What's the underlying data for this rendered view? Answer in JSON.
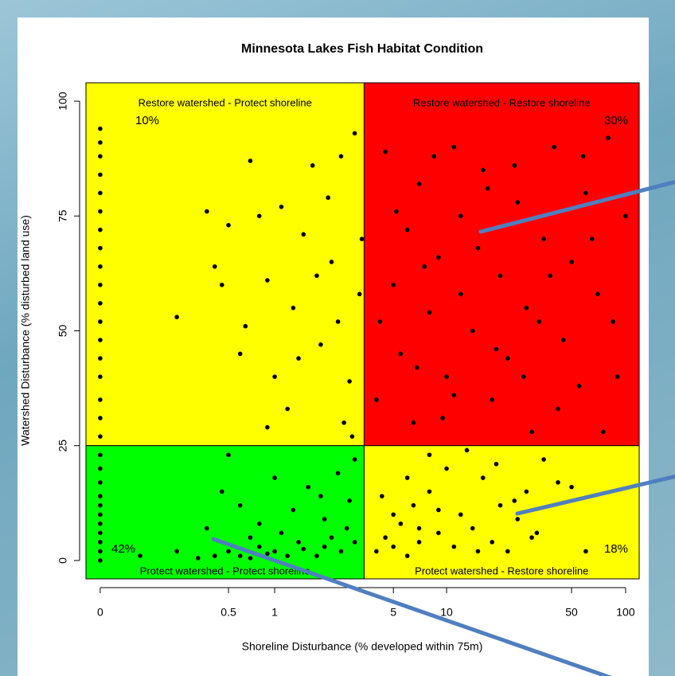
{
  "chart_data": {
    "type": "scatter",
    "title": "Minnesota Lakes Fish Habitat Condition",
    "x_label": "Shoreline Disturbance (% developed within 75m)",
    "y_label": "Watershed Disturbance (% disturbed land use)",
    "xscale": "log",
    "xlim": [
      -0.02,
      119
    ],
    "ylim": [
      -4,
      104
    ],
    "xticks": [
      0,
      0.5,
      1,
      5,
      10,
      50,
      100
    ],
    "yticks": [
      0,
      25,
      50,
      75,
      100
    ],
    "quadrant_split": [
      3.4,
      25
    ],
    "quadrants": {
      "names": [
        "Restore watershed - Protect shoreline",
        "Restore watershed - Restore shoreline",
        "Protect watershed - Protect shoreline",
        "Protect watershed - Restore shoreline"
      ],
      "values": [
        10,
        30,
        42,
        18
      ],
      "value_labels": [
        "10%",
        "30%",
        "42%",
        "18%"
      ],
      "colors": [
        "#ffff00",
        "#ff0000",
        "#00ff00",
        "#ffff00"
      ]
    },
    "point_color": "#000000",
    "x": [
      0,
      0,
      0,
      0,
      0,
      0,
      0,
      0,
      0,
      0,
      0,
      0,
      0,
      0,
      0,
      0,
      0,
      0,
      0,
      0,
      0,
      0,
      0,
      0,
      0,
      0,
      0,
      0,
      0,
      0.3,
      0.4,
      0.5,
      0.6,
      0.7,
      0.8,
      0.9,
      1,
      1.2,
      1.5,
      1.8,
      2,
      2.5,
      3,
      0.45,
      0.6,
      0.8,
      1.1,
      1.3,
      1.6,
      2,
      2.4,
      2.8,
      3,
      0.35,
      0.5,
      1.4,
      2.2,
      1.9,
      0.7,
      0.2,
      0.08,
      1,
      2.7,
      0.2,
      0.35,
      0.4,
      0.45,
      0.5,
      0.65,
      0.7,
      0.8,
      0.9,
      1,
      1.1,
      1.2,
      1.3,
      1.5,
      1.7,
      1.9,
      2.2,
      2.5,
      2.8,
      3,
      3.2,
      2.6,
      2.1,
      1.4,
      0.9,
      3.3,
      2.4,
      1.8,
      0.6,
      2.9,
      4,
      4.5,
      5,
      5.5,
      6,
      6.5,
      7,
      8,
      9,
      10,
      11,
      12,
      14,
      16,
      18,
      20,
      22,
      25,
      28,
      30,
      35,
      40,
      45,
      50,
      55,
      60,
      70,
      80,
      90,
      100,
      4.2,
      5.2,
      6.8,
      8.5,
      9.5,
      12,
      15,
      19,
      24,
      33,
      42,
      65,
      85,
      7.5,
      11,
      17,
      27,
      38,
      75,
      58,
      4,
      4.5,
      5,
      5.5,
      6,
      6.5,
      7,
      8,
      9,
      10,
      11,
      12,
      14,
      16,
      18,
      20,
      22,
      25,
      28,
      32,
      35,
      42,
      50,
      60,
      8,
      13,
      5,
      6,
      4.3,
      9,
      15,
      19,
      30,
      24,
      7
    ],
    "y": [
      0,
      2,
      4,
      6,
      8,
      10,
      12,
      14,
      17,
      20,
      23,
      27,
      31,
      35,
      40,
      44,
      48,
      52,
      56,
      60,
      64,
      68,
      72,
      76,
      80,
      84,
      88,
      91,
      94,
      0.5,
      1,
      2,
      1,
      0.5,
      3,
      1.5,
      2,
      1,
      2.5,
      1,
      3,
      2,
      4,
      15,
      12,
      8,
      6,
      11,
      16,
      9,
      19,
      13,
      22,
      7,
      23,
      4,
      5,
      14,
      5,
      2,
      1,
      18,
      7,
      53,
      76,
      64,
      60,
      73,
      51,
      87,
      75,
      61,
      40,
      77,
      33,
      55,
      71,
      86,
      47,
      65,
      88,
      39,
      93,
      58,
      30,
      79,
      44,
      29,
      70,
      52,
      62,
      45,
      27,
      35,
      89,
      60,
      45,
      72,
      30,
      82,
      54,
      66,
      40,
      90,
      75,
      50,
      85,
      35,
      62,
      44,
      78,
      55,
      28,
      70,
      90,
      48,
      65,
      38,
      80,
      58,
      92,
      40,
      75,
      52,
      76,
      42,
      88,
      31,
      58,
      68,
      46,
      86,
      52,
      33,
      70,
      52,
      64,
      36,
      81,
      40,
      62,
      28,
      88,
      2,
      5,
      3,
      8,
      1,
      12,
      4,
      15,
      6,
      20,
      3,
      10,
      7,
      18,
      4,
      12,
      2,
      9,
      15,
      6,
      22,
      17,
      16,
      2,
      23,
      24,
      10,
      18,
      14,
      11,
      2,
      21,
      5,
      13,
      7
    ]
  }
}
